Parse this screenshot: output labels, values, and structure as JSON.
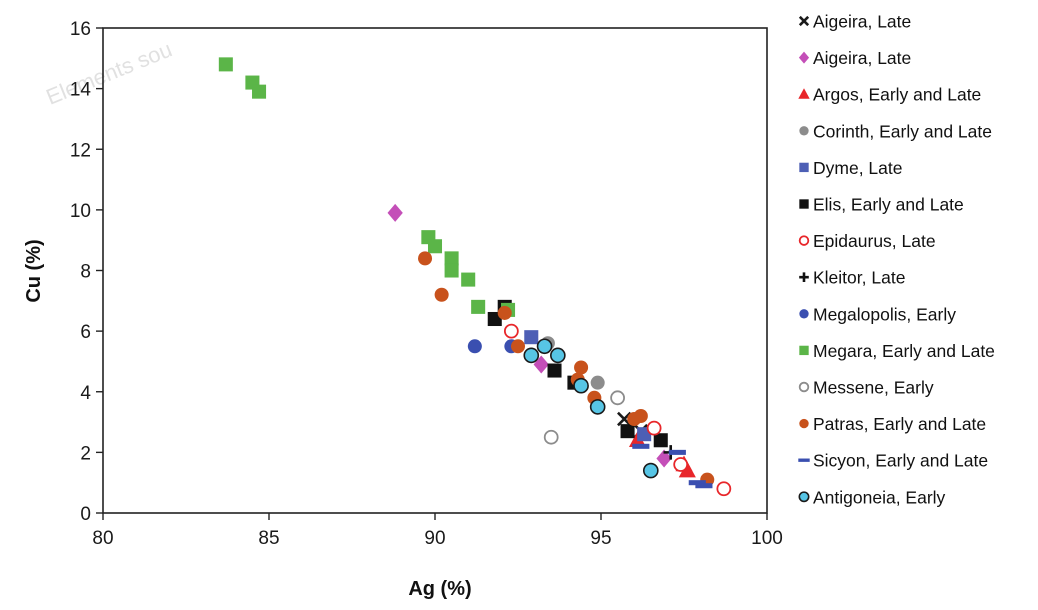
{
  "watermark": {
    "text": "Elements sou"
  },
  "chart_data": {
    "type": "scatter",
    "title": "",
    "xlabel": "Ag (%)",
    "ylabel": "Cu (%)",
    "xlim": [
      80,
      100
    ],
    "ylim": [
      0,
      16
    ],
    "xticks": [
      80,
      85,
      90,
      95,
      100
    ],
    "yticks": [
      0,
      2,
      4,
      6,
      8,
      10,
      12,
      14,
      16
    ],
    "grid": false,
    "legend_position": "right",
    "series": [
      {
        "name": "Aigeira, Late",
        "marker": "x",
        "color": "#1a1a1a",
        "points": [
          [
            95.7,
            3.1
          ],
          [
            96.2,
            2.7
          ]
        ]
      },
      {
        "name": "Aigeira, Late",
        "marker": "diamond",
        "color": "#c44fb8",
        "points": [
          [
            88.8,
            9.9
          ],
          [
            93.2,
            4.9
          ],
          [
            96.9,
            1.8
          ]
        ]
      },
      {
        "name": "Argos, Early and Late",
        "marker": "triangle",
        "color": "#e8262a",
        "points": [
          [
            96.1,
            2.4
          ],
          [
            97.5,
            1.6
          ],
          [
            97.6,
            1.4
          ]
        ]
      },
      {
        "name": "Corinth, Early and Late",
        "marker": "circle",
        "color": "#8c8c8c",
        "points": [
          [
            93.4,
            5.6
          ],
          [
            94.9,
            4.3
          ]
        ]
      },
      {
        "name": "Dyme, Late",
        "marker": "square",
        "color": "#4d5fb5",
        "points": [
          [
            92.9,
            5.8
          ],
          [
            96.3,
            2.6
          ]
        ]
      },
      {
        "name": "Elis, Early and Late",
        "marker": "square",
        "color": "#111111",
        "points": [
          [
            91.8,
            6.4
          ],
          [
            92.1,
            6.8
          ],
          [
            93.6,
            4.7
          ],
          [
            94.2,
            4.3
          ],
          [
            95.8,
            2.7
          ],
          [
            96.8,
            2.4
          ]
        ]
      },
      {
        "name": "Epidaurus, Late",
        "marker": "open-circle",
        "color": "#e8262a",
        "points": [
          [
            92.3,
            6.0
          ],
          [
            96.6,
            2.8
          ],
          [
            97.4,
            1.6
          ],
          [
            98.7,
            0.8
          ]
        ]
      },
      {
        "name": "Kleitor, Late",
        "marker": "plus",
        "color": "#111111",
        "points": [
          [
            97.1,
            2.0
          ]
        ]
      },
      {
        "name": "Megalopolis, Early",
        "marker": "circle",
        "color": "#3a4fb0",
        "points": [
          [
            91.2,
            5.5
          ],
          [
            92.3,
            5.5
          ]
        ]
      },
      {
        "name": "Megara, Early and Late",
        "marker": "square",
        "color": "#5bb548",
        "points": [
          [
            83.7,
            14.8
          ],
          [
            84.5,
            14.2
          ],
          [
            84.7,
            13.9
          ],
          [
            89.8,
            9.1
          ],
          [
            90.0,
            8.8
          ],
          [
            90.5,
            8.4
          ],
          [
            90.5,
            8.0
          ],
          [
            91.0,
            7.7
          ],
          [
            91.3,
            6.8
          ],
          [
            92.2,
            6.7
          ]
        ]
      },
      {
        "name": "Messene, Early",
        "marker": "open-circle",
        "color": "#8c8c8c",
        "points": [
          [
            93.5,
            2.5
          ],
          [
            95.5,
            3.8
          ]
        ]
      },
      {
        "name": "Patras, Early and Late",
        "marker": "circle",
        "color": "#c8521c",
        "points": [
          [
            89.7,
            8.4
          ],
          [
            90.2,
            7.2
          ],
          [
            92.1,
            6.6
          ],
          [
            92.5,
            5.5
          ],
          [
            94.3,
            4.4
          ],
          [
            94.4,
            4.8
          ],
          [
            94.8,
            3.8
          ],
          [
            96.0,
            3.1
          ],
          [
            96.2,
            3.2
          ],
          [
            98.2,
            1.1
          ]
        ]
      },
      {
        "name": "Sicyon, Early and Late",
        "marker": "dash",
        "color": "#3a4fb0",
        "points": [
          [
            96.2,
            2.2
          ],
          [
            97.3,
            2.0
          ],
          [
            97.9,
            1.0
          ],
          [
            98.1,
            0.9
          ]
        ]
      },
      {
        "name": "Antigoneia, Early",
        "marker": "ringed-circle",
        "color": "#57c5e5",
        "points": [
          [
            92.9,
            5.2
          ],
          [
            93.3,
            5.5
          ],
          [
            93.7,
            5.2
          ],
          [
            94.4,
            4.2
          ],
          [
            94.9,
            3.5
          ],
          [
            96.5,
            1.4
          ]
        ]
      }
    ]
  }
}
